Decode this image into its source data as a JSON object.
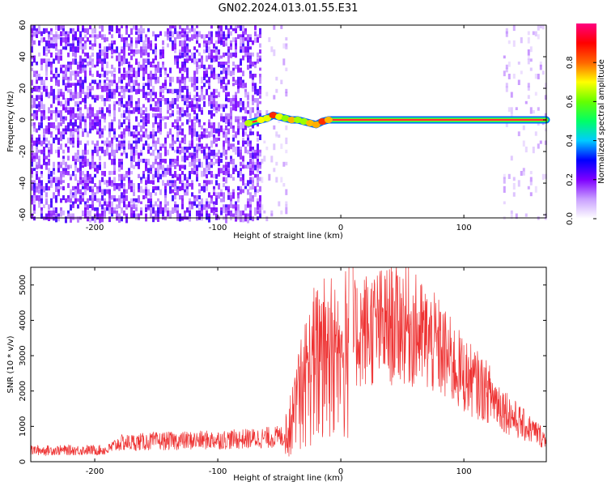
{
  "title": "GN02.2024.013.01.55.E31",
  "chart_data": [
    {
      "type": "heatmap",
      "xlabel": "Height of straight line (km)",
      "ylabel": "Frequency (Hz)",
      "xlim": [
        -252,
        167
      ],
      "ylim": [
        -62,
        60
      ],
      "xticks": [
        -200,
        -100,
        0,
        100
      ],
      "yticks": [
        60,
        40,
        20,
        0,
        -20,
        -40,
        -60
      ],
      "colorbar": {
        "label": "Normalized spectral amplitude",
        "range": [
          0,
          1
        ],
        "ticks": [
          0.0,
          0.2,
          0.4,
          0.6,
          0.8
        ],
        "colors": [
          "#ffffff",
          "#c9a0ff",
          "#7f00ff",
          "#0000ff",
          "#00ccff",
          "#00ff66",
          "#66ff00",
          "#ffff00",
          "#ff6600",
          "#ff0000",
          "#ff0080"
        ]
      },
      "regions": [
        {
          "description": "broadband noise",
          "x_range": [
            -252,
            -65
          ],
          "f_range": [
            -62,
            60
          ],
          "amplitude": 0.15
        },
        {
          "description": "sparse noise",
          "x_range": [
            -65,
            -45
          ],
          "f_range": [
            -62,
            60
          ],
          "amplitude": 0.05
        },
        {
          "description": "sparse noise",
          "x_range": [
            132,
            167
          ],
          "f_range": [
            -62,
            60
          ],
          "amplitude": 0.05
        }
      ],
      "carrier_line": [
        [
          -75,
          -2
        ],
        [
          -65,
          0
        ],
        [
          -60,
          1
        ],
        [
          -55,
          3
        ],
        [
          -50,
          2
        ],
        [
          -45,
          1
        ],
        [
          -40,
          0
        ],
        [
          -35,
          0
        ],
        [
          -30,
          -1
        ],
        [
          -25,
          -2
        ],
        [
          -20,
          -3
        ],
        [
          -15,
          -1
        ],
        [
          -10,
          0
        ],
        [
          0,
          0
        ],
        [
          50,
          0
        ],
        [
          100,
          0
        ],
        [
          150,
          0
        ],
        [
          167,
          0
        ]
      ],
      "carrier_amplitude": 0.95
    },
    {
      "type": "line",
      "xlabel": "Height of straight line (km)",
      "ylabel": "SNR (10 * v/v)",
      "xlim": [
        -252,
        167
      ],
      "ylim": [
        0,
        5500
      ],
      "xticks": [
        -200,
        -100,
        0,
        100
      ],
      "yticks": [
        0,
        1000,
        2000,
        3000,
        4000,
        5000
      ],
      "color": "#ee3333",
      "envelope_x": [
        -252,
        -190,
        -180,
        -150,
        -120,
        -80,
        -60,
        -45,
        -40,
        -35,
        -30,
        -25,
        -20,
        -15,
        -10,
        -5,
        0,
        5,
        10,
        15,
        20,
        30,
        40,
        50,
        60,
        70,
        80,
        90,
        100,
        110,
        120,
        130,
        140,
        150,
        160,
        167
      ],
      "envelope_y": [
        320,
        330,
        530,
        580,
        600,
        640,
        680,
        720,
        1100,
        1650,
        2100,
        2500,
        2700,
        2900,
        2950,
        2800,
        2700,
        3100,
        3500,
        3700,
        3750,
        3800,
        3850,
        3950,
        3700,
        3450,
        3200,
        2800,
        2450,
        2200,
        1950,
        1600,
        1250,
        1000,
        800,
        600
      ]
    }
  ]
}
